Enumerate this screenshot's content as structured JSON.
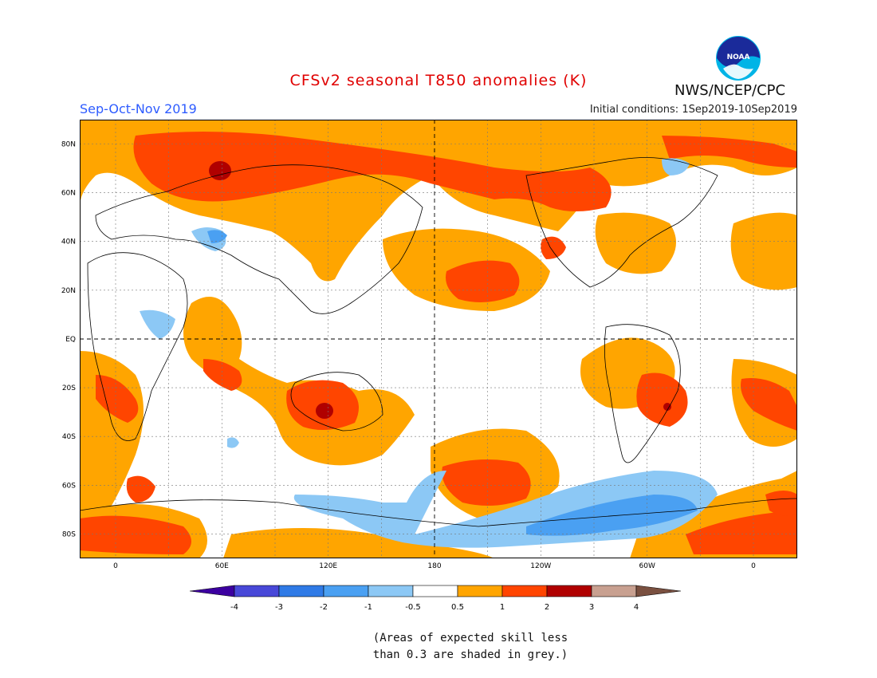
{
  "header": {
    "title": "CFSv2 seasonal T850 anomalies (K)",
    "period": "Sep-Oct-Nov 2019",
    "initial_conditions": "Initial conditions: 1Sep2019-10Sep2019",
    "agency": "NWS/NCEP/CPC",
    "logo_text": "NOAA"
  },
  "map": {
    "lat_labels": [
      "80N",
      "60N",
      "40N",
      "20N",
      "EQ",
      "20S",
      "40S",
      "60S",
      "80S"
    ],
    "lon_labels": [
      "0",
      "60E",
      "120E",
      "180",
      "120W",
      "60W",
      "0"
    ]
  },
  "colorbar": {
    "labels": [
      "-4",
      "-3",
      "-2",
      "-1",
      "-0.5",
      "0.5",
      "1",
      "2",
      "3",
      "4"
    ],
    "colors": [
      "#3c00a0",
      "#4848d8",
      "#2f7ae6",
      "#4aa0f2",
      "#8cc8f5",
      "#ffffff",
      "#ffa500",
      "#ff4500",
      "#b00000",
      "#c8a090",
      "#7a5040"
    ]
  },
  "footnote": {
    "line1": "(Areas of expected skill less",
    "line2": "than 0.3 are shaded in grey.)"
  },
  "colors": {
    "title": "#e00000",
    "period": "#2e5cff",
    "warm": "#ffa500",
    "hot": "#ff4500",
    "very_hot": "#b00000",
    "cool": "#8cc8f5",
    "cold": "#4aa0f2"
  }
}
